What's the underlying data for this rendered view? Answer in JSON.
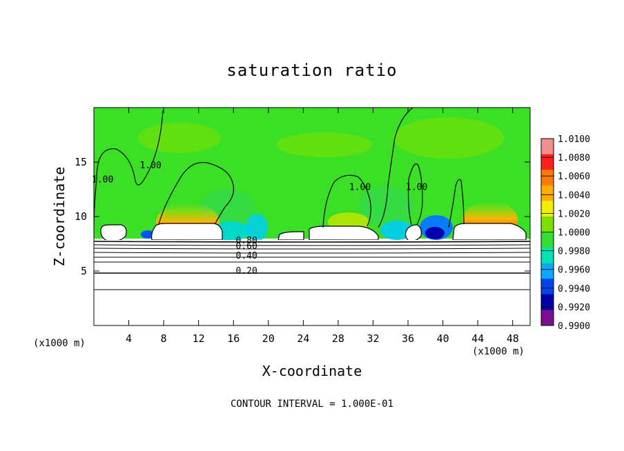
{
  "chart_data": {
    "type": "heatmap",
    "title": "saturation ratio",
    "xlabel": "X-coordinate",
    "ylabel": "Z-coordinate",
    "x_unit": "(x1000 m)",
    "xlim": [
      0,
      50
    ],
    "ylim": [
      0,
      20
    ],
    "x_ticks": [
      "4",
      "8",
      "12",
      "16",
      "20",
      "24",
      "28",
      "32",
      "36",
      "40",
      "44",
      "48"
    ],
    "y_ticks": [
      "5",
      "10",
      "15"
    ],
    "colorbar": {
      "levels": [
        "1.0100",
        "1.0080",
        "1.0060",
        "1.0040",
        "1.0020",
        "1.0000",
        "0.9980",
        "0.9960",
        "0.9940",
        "0.9920",
        "0.9900"
      ],
      "colors": [
        "#f08f8f",
        "#ff2020",
        "#ff7b00",
        "#ffae00",
        "#f2ee00",
        "#7ddf00",
        "#33dd33",
        "#00e2b0",
        "#0aa9ff",
        "#0044ee",
        "#0000a8",
        "#7a1090"
      ]
    },
    "contour_labels": [
      {
        "text": "1.00",
        "x": 6.5,
        "y": 14.5
      },
      {
        "text": "1.00",
        "x": 30.5,
        "y": 12.5
      },
      {
        "text": "1.00",
        "x": 37.0,
        "y": 12.5
      },
      {
        "text": "1.00",
        "x": 1.0,
        "y": 13.2
      },
      {
        "text": "0.80",
        "x": 17.5,
        "y": 7.6
      },
      {
        "text": "0.60",
        "x": 17.5,
        "y": 7.1
      },
      {
        "text": "0.40",
        "x": 17.5,
        "y": 6.2
      },
      {
        "text": "0.20",
        "x": 17.5,
        "y": 4.8
      }
    ],
    "contour_interval": "CONTOUR INTERVAL = 1.000E-01"
  }
}
